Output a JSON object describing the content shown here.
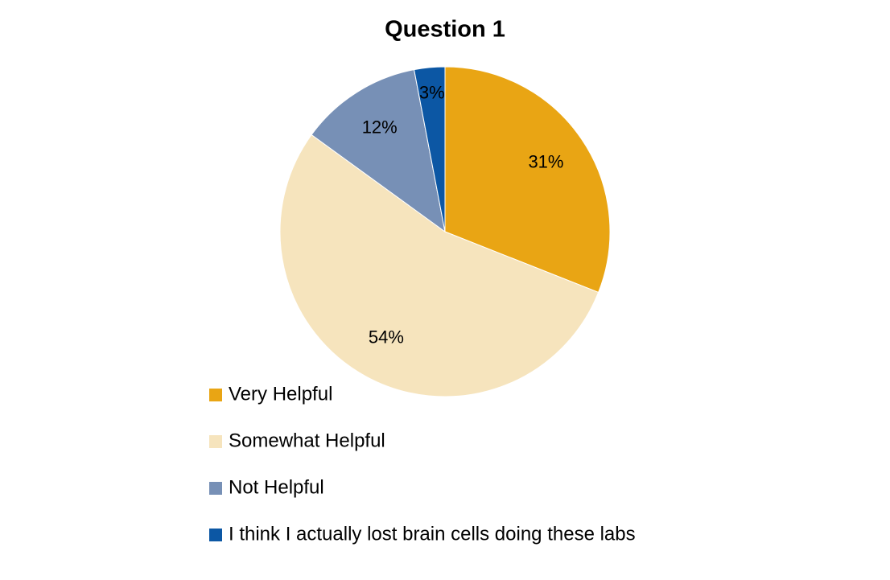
{
  "chart_data": {
    "type": "pie",
    "title": "Question 1",
    "categories": [
      "Very Helpful",
      "Somewhat Helpful",
      "Not Helpful",
      "I think I actually lost brain cells doing these labs"
    ],
    "values": [
      31,
      54,
      12,
      3
    ],
    "value_labels": [
      "31%",
      "54%",
      "12%",
      "3%"
    ],
    "colors": [
      "#e9a514",
      "#f6e4bd",
      "#7790b6",
      "#0c57a4"
    ],
    "legend": "bottom-left"
  }
}
